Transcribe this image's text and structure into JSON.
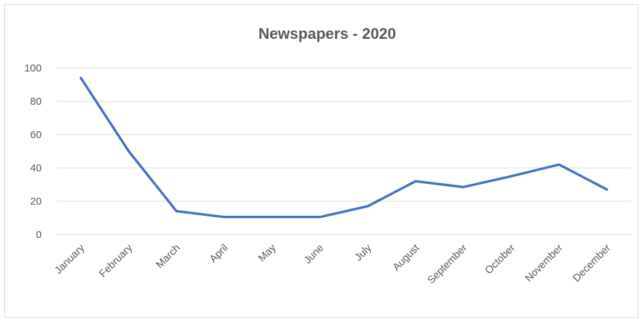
{
  "chart_data": {
    "type": "line",
    "title": "Newspapers - 2020",
    "xlabel": "",
    "ylabel": "",
    "categories": [
      "January",
      "February",
      "March",
      "April",
      "May",
      "June",
      "July",
      "August",
      "September",
      "October",
      "November",
      "December"
    ],
    "series": [
      {
        "values": [
          94,
          50,
          14,
          10.5,
          10.5,
          10.5,
          17,
          32,
          28.5,
          35,
          42,
          27
        ]
      }
    ],
    "ylim": [
      0,
      100
    ],
    "yticks": [
      "0",
      "20",
      "40",
      "60",
      "80",
      "100"
    ],
    "grid": true,
    "legend": "none",
    "line_color": "#4472C4"
  }
}
